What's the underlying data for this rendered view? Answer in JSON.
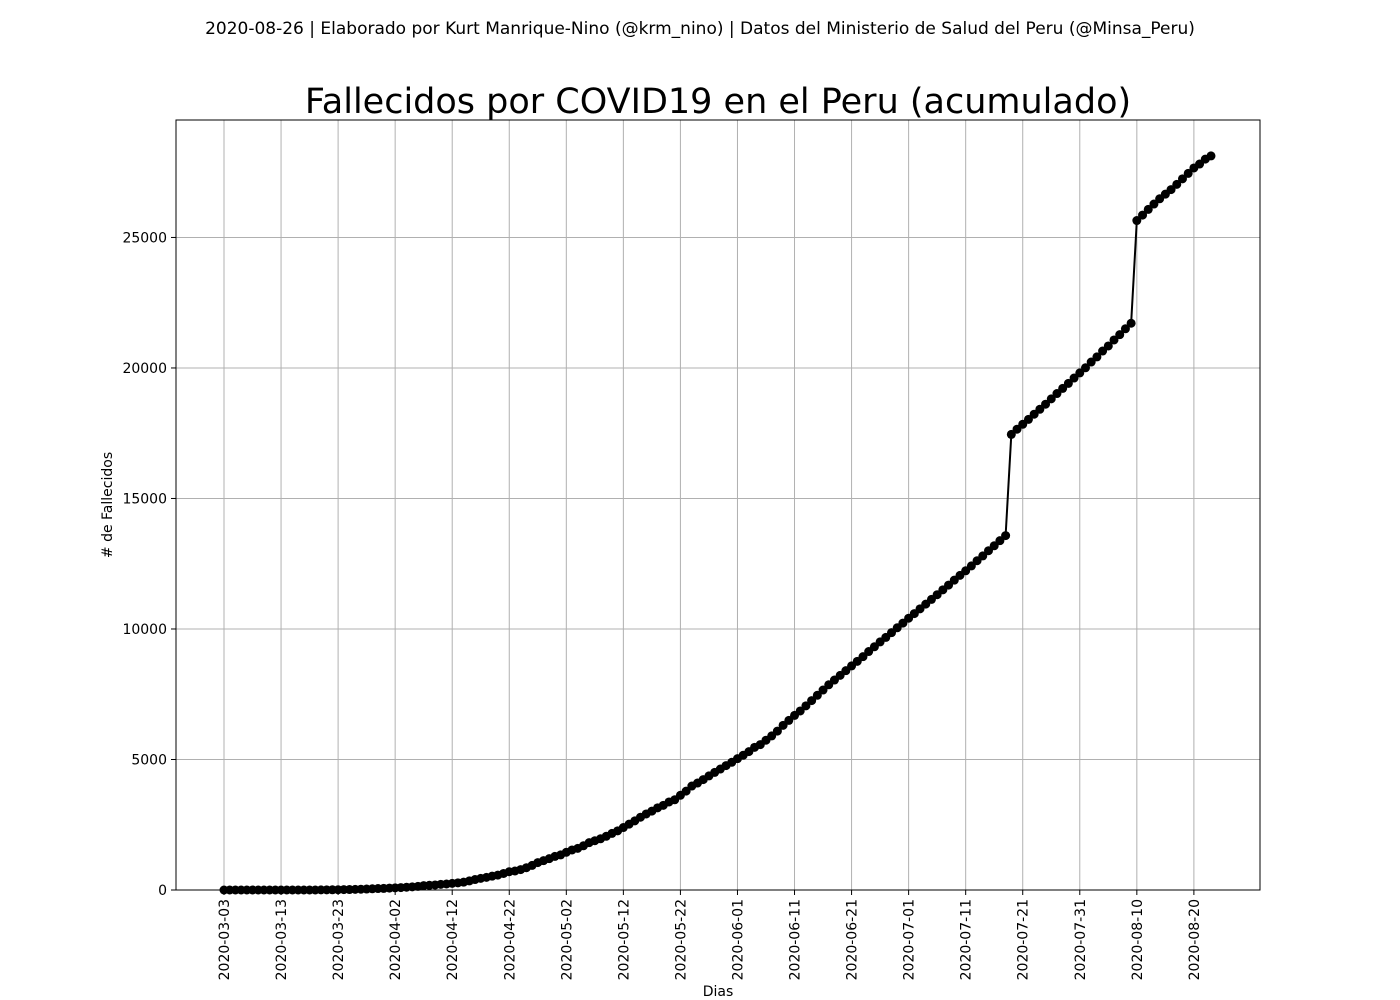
{
  "header": {
    "suptitle": "2020-08-26 | Elaborado por Kurt Manrique-Nino (@krm_nino) | Datos del Ministerio de Salud del Peru (@Minsa_Peru)"
  },
  "chart_data": {
    "type": "line",
    "title": "Fallecidos por COVID19 en el Peru (acumulado)",
    "xlabel": "Dias",
    "ylabel": "# de Fallecidos",
    "x_start": "2020-03-03",
    "x_end": "2020-08-26",
    "ylim": [
      0,
      29500
    ],
    "grid": true,
    "line_color": "#000000",
    "marker": "circle",
    "xticks": [
      "2020-03-03",
      "2020-03-13",
      "2020-03-23",
      "2020-04-02",
      "2020-04-12",
      "2020-04-22",
      "2020-05-02",
      "2020-05-12",
      "2020-05-22",
      "2020-06-01",
      "2020-06-11",
      "2020-06-21",
      "2020-07-01",
      "2020-07-11",
      "2020-07-21",
      "2020-07-31",
      "2020-08-10",
      "2020-08-20"
    ],
    "yticks": [
      0,
      5000,
      10000,
      15000,
      20000,
      25000
    ],
    "series": [
      {
        "values": [
          0,
          0,
          0,
          0,
          0,
          0,
          0,
          0,
          0,
          0,
          0,
          0,
          0,
          0,
          0,
          0,
          0,
          5,
          7,
          9,
          11,
          16,
          18,
          24,
          30,
          38,
          47,
          55,
          61,
          73,
          83,
          92,
          107,
          121,
          138,
          169,
          181,
          193,
          216,
          230,
          254,
          274,
          300,
          348,
          400,
          445,
          484,
          530,
          572,
          634,
          700,
          728,
          782,
          854,
          943,
          1051,
          1124,
          1200,
          1286,
          1344,
          1444,
          1533,
          1595,
          1694,
          1814,
          1889,
          1961,
          2057,
          2169,
          2267,
          2392,
          2523,
          2648,
          2789,
          2914,
          3024,
          3148,
          3244,
          3373,
          3456,
          3629,
          3788,
          3983,
          4099,
          4230,
          4371,
          4506,
          4634,
          4767,
          4894,
          5031,
          5162,
          5301,
          5465,
          5571,
          5738,
          5903,
          6088,
          6308,
          6498,
          6688,
          6860,
          7056,
          7257,
          7461,
          7660,
          7861,
          8045,
          8223,
          8404,
          8586,
          8761,
          8939,
          9135,
          9317,
          9504,
          9677,
          9860,
          10045,
          10226,
          10412,
          10589,
          10772,
          10952,
          11133,
          11314,
          11500,
          11682,
          11870,
          12054,
          12229,
          12417,
          12615,
          12799,
          12998,
          13187,
          13384,
          13579,
          17455,
          17654,
          17843,
          18030,
          18229,
          18418,
          18612,
          18816,
          19021,
          19217,
          19408,
          19614,
          19811,
          20007,
          20228,
          20424,
          20649,
          20844,
          21072,
          21276,
          21501,
          21713,
          25648,
          25856,
          26075,
          26281,
          26481,
          26658,
          26834,
          27034,
          27245,
          27453,
          27663,
          27813,
          28001,
          28124
        ]
      }
    ]
  }
}
